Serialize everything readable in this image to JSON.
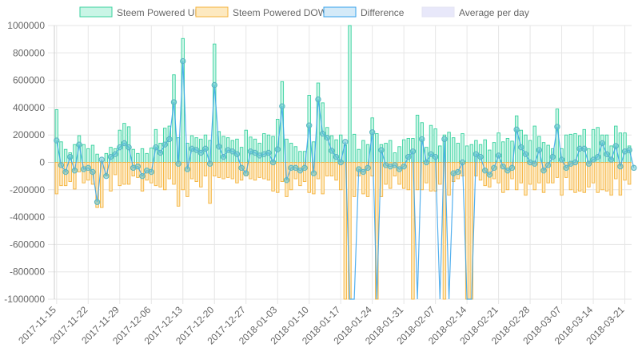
{
  "chart_data": {
    "type": "bar",
    "title": "",
    "xlabel": "",
    "ylabel": "",
    "ylim": [
      -1000000,
      1000000
    ],
    "yticks": [
      1000000,
      800000,
      600000,
      400000,
      200000,
      0,
      -200000,
      -400000,
      -600000,
      -800000,
      -1000000
    ],
    "legend_position": "top",
    "grid": true,
    "x_tick_labels": [
      "2017-11-15",
      "2017-11-22",
      "2017-11-29",
      "2017-12-06",
      "2017-12-13",
      "2017-12-20",
      "2017-12-27",
      "2018-01-03",
      "2018-01-10",
      "2018-01-17",
      "2018-01-24",
      "2018-01-31",
      "2018-02-07",
      "2018-02-14",
      "2018-02-21",
      "2018-02-28",
      "2018-03-07",
      "2018-03-14",
      "2018-03-21"
    ],
    "x_tick_every_days": 7,
    "start_date": "2017-11-15",
    "series": [
      {
        "name": "Steem Powered UP",
        "type": "bar",
        "color": "#3ad29f",
        "fill": "#c9f5e6",
        "values": [
          385000,
          150000,
          95000,
          70000,
          130000,
          195000,
          130000,
          100000,
          125000,
          60000,
          -40000,
          65000,
          110000,
          100000,
          235000,
          285000,
          260000,
          95000,
          65000,
          100000,
          65000,
          105000,
          240000,
          140000,
          250000,
          265000,
          640000,
          180000,
          905000,
          140000,
          195000,
          180000,
          170000,
          200000,
          160000,
          865000,
          225000,
          190000,
          180000,
          160000,
          170000,
          110000,
          235000,
          185000,
          170000,
          140000,
          210000,
          200000,
          190000,
          315000,
          590000,
          170000,
          140000,
          115000,
          80000,
          80000,
          490000,
          150000,
          580000,
          435000,
          255000,
          195000,
          165000,
          200000,
          125000,
          1000000,
          205000,
          95000,
          160000,
          130000,
          325000,
          210000,
          130000,
          140000,
          160000,
          70000,
          115000,
          165000,
          175000,
          175000,
          345000,
          290000,
          110000,
          270000,
          245000,
          120000,
          200000,
          220000,
          180000,
          140000,
          210000,
          120000,
          130000,
          160000,
          130000,
          165000,
          90000,
          145000,
          215000,
          150000,
          175000,
          155000,
          340000,
          235000,
          200000,
          160000,
          265000,
          190000,
          145000,
          125000,
          100000,
          390000,
          100000,
          200000,
          205000,
          210000,
          195000,
          240000,
          100000,
          240000,
          255000,
          200000,
          200000,
          120000,
          265000,
          215000,
          215000,
          120000
        ]
      },
      {
        "name": "Steem Powered DOWN",
        "type": "bar",
        "color": "#f5b33c",
        "fill": "#fde9c0",
        "values": [
          -230000,
          -170000,
          -170000,
          -140000,
          -195000,
          -70000,
          -150000,
          -130000,
          -160000,
          -330000,
          -330000,
          -100000,
          -210000,
          -90000,
          -170000,
          -160000,
          -160000,
          -100000,
          -110000,
          -210000,
          -130000,
          -150000,
          -170000,
          -180000,
          -200000,
          -120000,
          -160000,
          -320000,
          -200000,
          -250000,
          -120000,
          -140000,
          -180000,
          -100000,
          -300000,
          -100000,
          -110000,
          -120000,
          -110000,
          -120000,
          -150000,
          -130000,
          -100000,
          -120000,
          -130000,
          -110000,
          -120000,
          -130000,
          -210000,
          -220000,
          -140000,
          -250000,
          -200000,
          -120000,
          -170000,
          -140000,
          -220000,
          -230000,
          -120000,
          -230000,
          -100000,
          -100000,
          -130000,
          -200000,
          -1000000,
          -1000000,
          -250000,
          -100000,
          -230000,
          -250000,
          -100000,
          -1000000,
          -250000,
          -160000,
          -190000,
          -100000,
          -160000,
          -190000,
          -200000,
          -1000000,
          -200000,
          -200000,
          -150000,
          -210000,
          -210000,
          -160000,
          -1000000,
          -240000,
          -140000,
          -120000,
          -100000,
          -1000000,
          -1000000,
          -100000,
          -130000,
          -170000,
          -180000,
          -120000,
          -150000,
          -220000,
          -200000,
          -120000,
          -200000,
          -150000,
          -240000,
          -160000,
          -200000,
          -150000,
          -220000,
          -150000,
          -150000,
          -110000,
          -240000,
          -110000,
          -200000,
          -220000,
          -210000,
          -220000,
          -180000,
          -150000,
          -220000,
          -200000,
          -210000,
          -240000,
          -120000,
          -240000,
          -130000,
          -160000
        ]
      },
      {
        "name": "Difference",
        "type": "line",
        "color": "#36a2eb",
        "fill": "#d4eaf8",
        "values": [
          160000,
          -20000,
          -70000,
          40000,
          -60000,
          130000,
          -50000,
          -40000,
          -70000,
          -290000,
          20000,
          -100000,
          40000,
          60000,
          110000,
          140000,
          110000,
          -40000,
          -30000,
          -100000,
          -60000,
          -70000,
          110000,
          70000,
          130000,
          170000,
          440000,
          -10000,
          740000,
          -50000,
          100000,
          90000,
          70000,
          100000,
          -10000,
          565000,
          115000,
          40000,
          90000,
          80000,
          60000,
          -40000,
          -80000,
          80000,
          70000,
          50000,
          60000,
          70000,
          0,
          95000,
          410000,
          -130000,
          -40000,
          -40000,
          -60000,
          -40000,
          270000,
          -80000,
          460000,
          210000,
          180000,
          85000,
          40000,
          0,
          150000,
          -1000000,
          -1000000,
          -50000,
          -70000,
          -40000,
          220000,
          -1000000,
          90000,
          -20000,
          -30000,
          -20000,
          -50000,
          -30000,
          40000,
          80000,
          -1000000,
          170000,
          0,
          60000,
          40000,
          -1000000,
          170000,
          -1000000,
          -80000,
          -70000,
          0,
          -1000000,
          -1000000,
          60000,
          40000,
          -60000,
          -90000,
          -40000,
          50000,
          -30000,
          -60000,
          -40000,
          240000,
          110000,
          60000,
          0,
          -10000,
          90000,
          -60000,
          -20000,
          40000,
          260000,
          20000,
          -40000,
          -10000,
          0,
          100000,
          100000,
          -10000,
          20000,
          40000,
          140000,
          60000,
          20000,
          120000,
          -30000,
          80000,
          90000,
          -40000
        ]
      },
      {
        "name": "Average per day",
        "type": "line",
        "color": "#e3e3f3",
        "fill": "#e8e8fa",
        "values": []
      }
    ]
  }
}
